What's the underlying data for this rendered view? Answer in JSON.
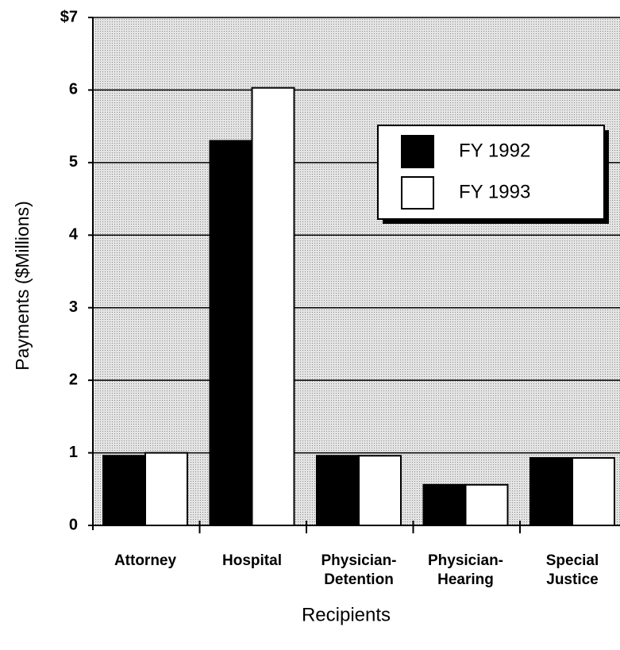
{
  "chart_data": {
    "type": "bar",
    "y_label": "Payments ($Millions)",
    "x_label": "Recipients",
    "categories": [
      "Attorney",
      "Hospital",
      "Physician-\nDetention",
      "Physician-\nHearing",
      "Special\nJustice"
    ],
    "series": [
      {
        "name": "FY 1992",
        "color": "#000000",
        "values": [
          0.96,
          5.3,
          0.96,
          0.56,
          0.93
        ]
      },
      {
        "name": "FY 1993",
        "color": "#ffffff",
        "values": [
          1.0,
          6.03,
          0.96,
          0.56,
          0.93
        ]
      }
    ],
    "ylim": [
      0,
      7
    ],
    "yticks": [
      0,
      1,
      2,
      3,
      4,
      5,
      6,
      {
        "value": 7,
        "label": "$7"
      }
    ],
    "grid": true,
    "legend": "upper right"
  }
}
